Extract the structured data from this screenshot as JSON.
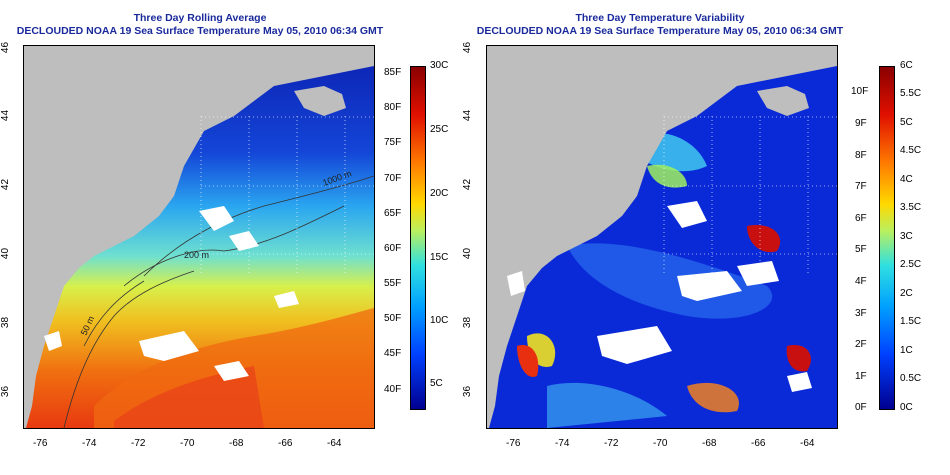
{
  "left": {
    "title_line1": "Three Day Rolling Average",
    "title_line2": "DECLOUDED NOAA 19 Sea Surface Temperature May 05, 2010 06:34 GMT",
    "lat_ticks": [
      "46",
      "44",
      "42",
      "40",
      "38",
      "36"
    ],
    "lon_ticks": [
      "-76",
      "-74",
      "-72",
      "-70",
      "-68",
      "-66",
      "-64"
    ],
    "contour_labels": [
      "1000 m",
      "200 m",
      "50 m"
    ],
    "cbar_f": [
      "85F",
      "80F",
      "75F",
      "70F",
      "65F",
      "60F",
      "55F",
      "50F",
      "45F",
      "40F"
    ],
    "cbar_c": [
      "30C",
      "25C",
      "20C",
      "15C",
      "10C",
      "5C"
    ]
  },
  "right": {
    "title_line1": "Three Day Temperature Variability",
    "title_line2": "DECLOUDED NOAA 19 Sea Surface Temperature May 05, 2010 06:34 GMT",
    "lat_ticks": [
      "46",
      "44",
      "42",
      "40",
      "38",
      "36"
    ],
    "lon_ticks": [
      "-76",
      "-74",
      "-72",
      "-70",
      "-68",
      "-66",
      "-64"
    ],
    "cbar_f": [
      "10F",
      "9F",
      "8F",
      "7F",
      "6F",
      "5F",
      "4F",
      "3F",
      "2F",
      "1F",
      "0F"
    ],
    "cbar_c": [
      "6C",
      "5.5C",
      "5C",
      "4.5C",
      "4C",
      "3.5C",
      "3C",
      "2.5C",
      "2C",
      "1.5C",
      "1C",
      "0.5C",
      "0C"
    ]
  },
  "colors": {
    "land": "#bebebe",
    "title": "#1a2a9c",
    "jet": [
      "#00008f",
      "#0000ff",
      "#0080ff",
      "#00ffff",
      "#80ff80",
      "#ffff00",
      "#ff8000",
      "#ff0000",
      "#800000"
    ]
  }
}
